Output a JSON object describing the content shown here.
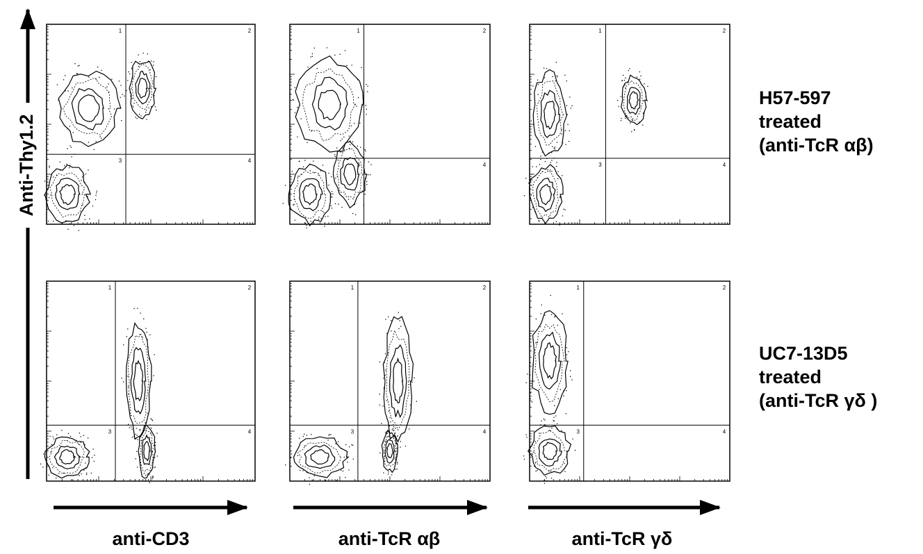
{
  "y_axis_label": "Anti-Thy1.2",
  "x_axis_labels": [
    "anti-CD3",
    "anti-TcR αβ",
    "anti-TcR γδ"
  ],
  "rows": [
    {
      "lines": [
        "H57-597",
        "treated",
        "(anti-TcR αβ)"
      ]
    },
    {
      "lines": [
        "UC7-13D5",
        "treated",
        "(anti-TcR γδ )"
      ]
    }
  ],
  "quadrant_labels": [
    "1",
    "2",
    "3",
    "4"
  ]
}
